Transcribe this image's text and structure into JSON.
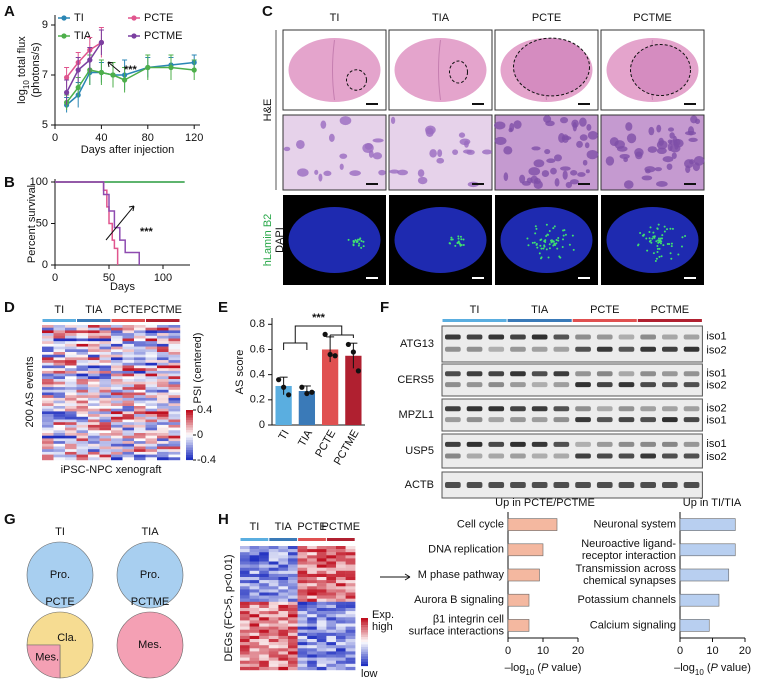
{
  "panel_labels": [
    "A",
    "B",
    "C",
    "D",
    "E",
    "F",
    "G",
    "H"
  ],
  "chart_data": [
    {
      "type": "line",
      "xlabel": "Days after injection",
      "ylabel_parts": [
        "log",
        "10",
        " total flux",
        "(photons/s)"
      ],
      "annotation": "***",
      "x": [
        10,
        20,
        30,
        40,
        50,
        60,
        80,
        100,
        120
      ],
      "xlim": [
        0,
        125
      ],
      "ylim": [
        5,
        9.4
      ],
      "xticks": [
        0,
        40,
        80,
        120
      ],
      "yticks": [
        5,
        7,
        9
      ],
      "series": [
        {
          "name": "TI",
          "color": "#2a86b4",
          "values": [
            5.8,
            6.2,
            7.1,
            7.1,
            7.0,
            7.0,
            7.3,
            7.4,
            7.5
          ],
          "errors": [
            0.3,
            0.5,
            0.5,
            0.4,
            0.5,
            0.6,
            0.4,
            0.3,
            0.3
          ]
        },
        {
          "name": "TIA",
          "color": "#4daf4a",
          "values": [
            5.9,
            6.5,
            7.2,
            7.1,
            7.0,
            6.8,
            7.3,
            7.3,
            7.2
          ],
          "errors": [
            0.3,
            0.4,
            0.6,
            0.5,
            0.5,
            0.5,
            0.5,
            0.5,
            0.4
          ]
        },
        {
          "name": "PCTE",
          "color": "#e0558e",
          "values": [
            6.9,
            7.5,
            8.0,
            8.3,
            null,
            null,
            null,
            null,
            null
          ],
          "errors": [
            0.4,
            0.4,
            0.5,
            0.6,
            null,
            null,
            null,
            null,
            null
          ]
        },
        {
          "name": "PCTME",
          "color": "#7b3fa0",
          "values": [
            6.3,
            7.2,
            7.6,
            8.3,
            null,
            null,
            null,
            null,
            null
          ],
          "errors": [
            0.5,
            0.5,
            0.5,
            0.5,
            null,
            null,
            null,
            null,
            null
          ]
        }
      ]
    },
    {
      "type": "step",
      "xlabel": "Days",
      "ylabel": "Percent survival",
      "annotation": "***",
      "xlim": [
        0,
        125
      ],
      "ylim": [
        0,
        100
      ],
      "xticks": [
        0,
        50,
        100
      ],
      "yticks": [
        0,
        50,
        100
      ],
      "series": [
        {
          "name": "TI",
          "color": "#2a86b4",
          "x": [
            0,
            120
          ],
          "values": [
            100,
            100
          ]
        },
        {
          "name": "TIA",
          "color": "#4daf4a",
          "x": [
            0,
            120
          ],
          "values": [
            100,
            100
          ]
        },
        {
          "name": "PCTE",
          "color": "#e0558e",
          "x": [
            0,
            42,
            45,
            48,
            50,
            53,
            55,
            58
          ],
          "values": [
            100,
            100,
            90,
            70,
            50,
            30,
            20,
            0
          ]
        },
        {
          "name": "PCTME",
          "color": "#8e4bb0",
          "x": [
            0,
            40,
            45,
            50,
            55,
            60,
            65,
            78
          ],
          "values": [
            100,
            100,
            85,
            65,
            45,
            30,
            15,
            0
          ]
        }
      ]
    },
    {
      "type": "bar",
      "ylabel": "AS score",
      "annotation": "***",
      "categories": [
        "TI",
        "TIA",
        "PCTE",
        "PCTME"
      ],
      "values": [
        0.31,
        0.27,
        0.6,
        0.55
      ],
      "errors": [
        0.07,
        0.04,
        0.1,
        0.1
      ],
      "points": [
        [
          0.36,
          0.3,
          0.24
        ],
        [
          0.3,
          0.25,
          0.26
        ],
        [
          0.72,
          0.56,
          0.55
        ],
        [
          0.64,
          0.58,
          0.43
        ]
      ],
      "colors": [
        "#5aaee0",
        "#3a7ab8",
        "#e05050",
        "#b02030"
      ],
      "ylim": [
        0,
        0.85
      ],
      "yticks": [
        0,
        0.2,
        0.4,
        0.6,
        0.8
      ]
    },
    {
      "type": "pie",
      "title": "TI",
      "title_color": "#3b7fc0",
      "labels": [
        "Pro."
      ],
      "values": [
        100
      ],
      "colors": [
        "#a8cff0"
      ]
    },
    {
      "type": "pie",
      "title": "TIA",
      "title_color": "#3b7fc0",
      "labels": [
        "Pro."
      ],
      "values": [
        100
      ],
      "colors": [
        "#a8cff0"
      ]
    },
    {
      "type": "pie",
      "title": "PCTE",
      "title_color": "#c8343a",
      "labels": [
        "Cla.",
        "Mes."
      ],
      "values": [
        75,
        25
      ],
      "colors": [
        "#f6dc92",
        "#f4a0b4"
      ]
    },
    {
      "type": "pie",
      "title": "PCTME",
      "title_color": "#c8343a",
      "labels": [
        "Mes."
      ],
      "values": [
        100
      ],
      "colors": [
        "#f4a0b4"
      ]
    },
    {
      "type": "hbar",
      "title": "Up in PCTE/PCTME",
      "categories": [
        "Cell cycle",
        "DNA replication",
        "M phase pathway",
        "Aurora B signaling",
        "β1 integrin cell\nsurface interactions"
      ],
      "values": [
        14,
        10,
        9,
        6,
        6
      ],
      "color": "#f4b8a0",
      "xlim": [
        0,
        20
      ],
      "xticks": [
        0,
        10,
        20
      ],
      "xlabel_parts": [
        "–log",
        "10",
        " (",
        "P",
        " value)"
      ]
    },
    {
      "type": "hbar",
      "title": "Up in TI/TIA",
      "categories": [
        "Neuronal system",
        "Neuroactive ligand-\nreceptor interaction",
        "Transmission across\nchemical synapses",
        "Potassium channels",
        "Calcium signaling"
      ],
      "values": [
        17,
        17,
        15,
        12,
        9
      ],
      "color": "#b8cff0",
      "xlim": [
        0,
        20
      ],
      "xticks": [
        0,
        10,
        20
      ],
      "xlabel_parts": [
        "–log",
        "10",
        " (",
        "P",
        " value)"
      ]
    }
  ],
  "groups": [
    {
      "name": "TI",
      "color": "#5aaee0"
    },
    {
      "name": "TIA",
      "color": "#3a7ab8"
    },
    {
      "name": "PCTE",
      "color": "#e05050"
    },
    {
      "name": "PCTME",
      "color": "#b02030"
    }
  ],
  "histology": {
    "columns": [
      "TI",
      "TIA",
      "PCTE",
      "PCTME"
    ],
    "row_label": "H&E",
    "stain_labels": [
      "hLamin B2",
      "DAPI"
    ]
  },
  "heatmap_d": {
    "ylabel": "200 AS events",
    "colorbar_label": "PSI (centered)",
    "colorbar_ticks": [
      0.4,
      0,
      -0.4
    ],
    "xlabel": "iPSC-NPC xenograft"
  },
  "gel": {
    "genes": [
      {
        "name": "ATG13",
        "isoforms": [
          "iso1",
          "iso2"
        ]
      },
      {
        "name": "CERS5",
        "isoforms": [
          "iso1",
          "iso2"
        ]
      },
      {
        "name": "MPZL1",
        "isoforms": [
          "iso2",
          "iso1"
        ]
      },
      {
        "name": "USP5",
        "isoforms": [
          "iso1",
          "iso2"
        ]
      },
      {
        "name": "ACTB"
      }
    ]
  },
  "heatmap_h": {
    "ylabel": "DEGs (FC>5, p<0.01)",
    "legend_title": "Exp.",
    "high": "high",
    "low": "low"
  }
}
